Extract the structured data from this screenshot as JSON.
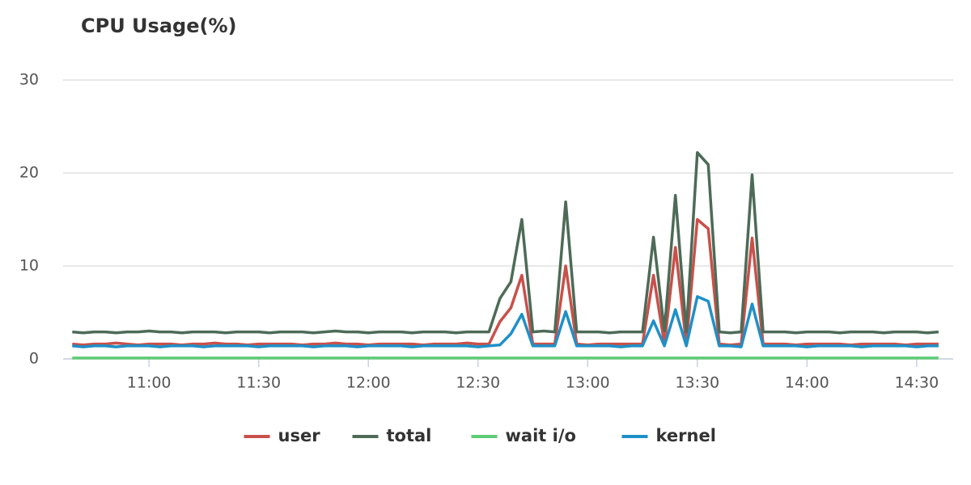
{
  "chart_data": {
    "type": "line",
    "title": "CPU Usage(%)",
    "x": [
      639,
      642,
      645,
      648,
      651,
      654,
      657,
      660,
      663,
      666,
      669,
      672,
      675,
      678,
      681,
      684,
      687,
      690,
      693,
      696,
      699,
      702,
      705,
      708,
      711,
      714,
      717,
      720,
      723,
      726,
      729,
      732,
      735,
      738,
      741,
      744,
      747,
      750,
      753,
      756,
      759,
      762,
      765,
      768,
      771,
      774,
      777,
      780,
      783,
      786,
      789,
      792,
      795,
      798,
      801,
      804,
      807,
      810,
      813,
      816,
      819,
      822,
      825,
      828,
      831,
      834,
      837,
      840,
      843,
      846,
      849,
      852,
      855,
      858,
      861,
      864,
      867,
      870,
      873,
      876
    ],
    "xlim": [
      636.5,
      880
    ],
    "xticks": [
      {
        "value": 660,
        "label": "11:00"
      },
      {
        "value": 690,
        "label": "11:30"
      },
      {
        "value": 720,
        "label": "12:00"
      },
      {
        "value": 750,
        "label": "12:30"
      },
      {
        "value": 780,
        "label": "13:00"
      },
      {
        "value": 810,
        "label": "13:30"
      },
      {
        "value": 840,
        "label": "14:00"
      },
      {
        "value": 870,
        "label": "14:30"
      }
    ],
    "ylim": [
      0,
      30
    ],
    "yticks": [
      0,
      10,
      20,
      30
    ],
    "grid": true,
    "legend": "bottom",
    "series": [
      {
        "name": "user",
        "color": "#c9504a",
        "values": [
          1.6,
          1.5,
          1.6,
          1.6,
          1.7,
          1.6,
          1.5,
          1.6,
          1.6,
          1.6,
          1.5,
          1.6,
          1.6,
          1.7,
          1.6,
          1.6,
          1.5,
          1.6,
          1.6,
          1.6,
          1.6,
          1.5,
          1.6,
          1.6,
          1.7,
          1.6,
          1.6,
          1.5,
          1.6,
          1.6,
          1.6,
          1.6,
          1.5,
          1.6,
          1.6,
          1.6,
          1.7,
          1.6,
          1.6,
          4.0,
          5.5,
          9.0,
          1.6,
          1.6,
          1.6,
          10.0,
          1.6,
          1.5,
          1.6,
          1.6,
          1.6,
          1.6,
          1.6,
          9.0,
          1.6,
          12.0,
          1.6,
          15.0,
          14.0,
          1.6,
          1.5,
          1.6,
          13.0,
          1.6,
          1.6,
          1.6,
          1.5,
          1.6,
          1.6,
          1.6,
          1.6,
          1.5,
          1.6,
          1.6,
          1.6,
          1.6,
          1.5,
          1.6,
          1.6,
          1.6
        ]
      },
      {
        "name": "total",
        "color": "#4d6b57",
        "values": [
          2.9,
          2.8,
          2.9,
          2.9,
          2.8,
          2.9,
          2.9,
          3.0,
          2.9,
          2.9,
          2.8,
          2.9,
          2.9,
          2.9,
          2.8,
          2.9,
          2.9,
          2.9,
          2.8,
          2.9,
          2.9,
          2.9,
          2.8,
          2.9,
          3.0,
          2.9,
          2.9,
          2.8,
          2.9,
          2.9,
          2.9,
          2.8,
          2.9,
          2.9,
          2.9,
          2.8,
          2.9,
          2.9,
          2.9,
          6.5,
          8.3,
          15.0,
          2.9,
          3.0,
          2.9,
          16.9,
          2.9,
          2.9,
          2.9,
          2.8,
          2.9,
          2.9,
          2.9,
          13.1,
          3.0,
          17.6,
          2.9,
          22.2,
          20.9,
          2.9,
          2.8,
          2.9,
          19.8,
          2.9,
          2.9,
          2.9,
          2.8,
          2.9,
          2.9,
          2.9,
          2.8,
          2.9,
          2.9,
          2.9,
          2.8,
          2.9,
          2.9,
          2.9,
          2.8,
          2.9
        ]
      },
      {
        "name": "wait i/o",
        "color": "#5ecb75",
        "values": [
          0.1,
          0.1,
          0.1,
          0.1,
          0.1,
          0.1,
          0.1,
          0.1,
          0.1,
          0.1,
          0.1,
          0.1,
          0.1,
          0.1,
          0.1,
          0.1,
          0.1,
          0.1,
          0.1,
          0.1,
          0.1,
          0.1,
          0.1,
          0.1,
          0.1,
          0.1,
          0.1,
          0.1,
          0.1,
          0.1,
          0.1,
          0.1,
          0.1,
          0.1,
          0.1,
          0.1,
          0.1,
          0.1,
          0.1,
          0.1,
          0.1,
          0.1,
          0.1,
          0.1,
          0.1,
          0.1,
          0.1,
          0.1,
          0.1,
          0.1,
          0.1,
          0.1,
          0.1,
          0.1,
          0.1,
          0.1,
          0.1,
          0.1,
          0.1,
          0.1,
          0.1,
          0.1,
          0.1,
          0.1,
          0.1,
          0.1,
          0.1,
          0.1,
          0.1,
          0.1,
          0.1,
          0.1,
          0.1,
          0.1,
          0.1,
          0.1,
          0.1,
          0.1,
          0.1,
          0.1
        ]
      },
      {
        "name": "kernel",
        "color": "#1e90c8",
        "values": [
          1.4,
          1.3,
          1.4,
          1.4,
          1.3,
          1.4,
          1.4,
          1.4,
          1.3,
          1.4,
          1.4,
          1.4,
          1.3,
          1.4,
          1.4,
          1.4,
          1.4,
          1.3,
          1.4,
          1.4,
          1.4,
          1.4,
          1.3,
          1.4,
          1.4,
          1.4,
          1.3,
          1.4,
          1.4,
          1.4,
          1.4,
          1.3,
          1.4,
          1.4,
          1.4,
          1.4,
          1.4,
          1.3,
          1.4,
          1.5,
          2.7,
          4.8,
          1.4,
          1.4,
          1.4,
          5.1,
          1.4,
          1.4,
          1.4,
          1.4,
          1.3,
          1.4,
          1.4,
          4.1,
          1.4,
          5.3,
          1.4,
          6.7,
          6.2,
          1.4,
          1.4,
          1.3,
          5.9,
          1.4,
          1.4,
          1.4,
          1.4,
          1.3,
          1.4,
          1.4,
          1.4,
          1.4,
          1.3,
          1.4,
          1.4,
          1.4,
          1.4,
          1.3,
          1.4,
          1.4
        ]
      }
    ]
  }
}
